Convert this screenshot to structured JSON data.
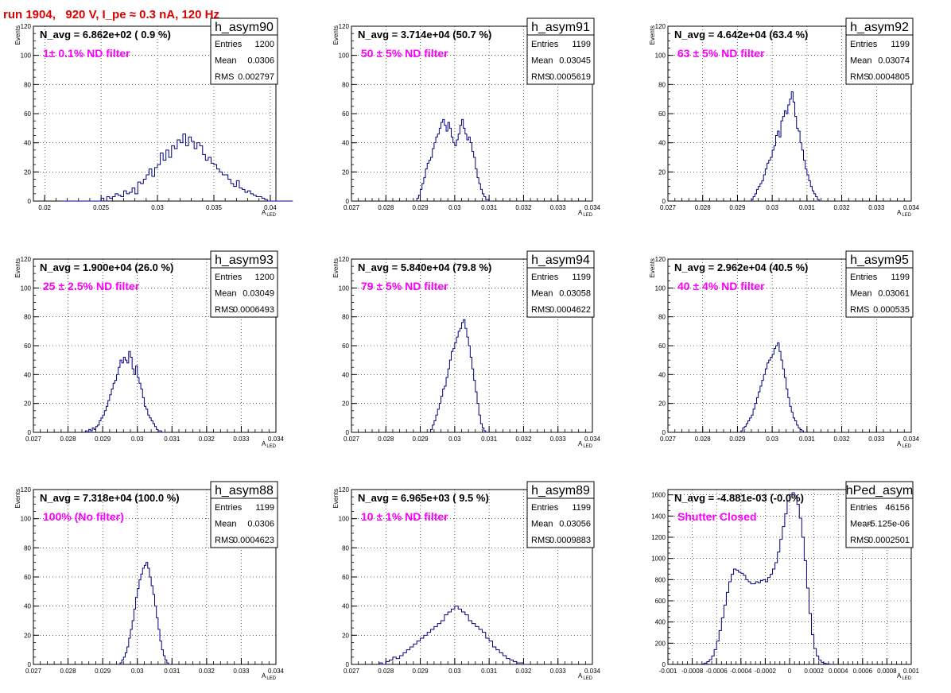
{
  "run_title": "run 1904,   920 V, I_pe ≈ 0.3 nA, 120 Hz",
  "style": {
    "hist_line": "#000080",
    "filter_text": "#ff00ff",
    "title_text": "#e00000",
    "grid": "#000000"
  },
  "chart_data": [
    {
      "type": "histogram",
      "name": "h_asym90",
      "stats": {
        "Entries": "1200",
        "Mean": "0.0306",
        "RMS": "0.002797"
      },
      "nlabel": "N_avg = 6.862e+02 ( 0.9 %)",
      "filter": "1± 0.1% ND filter",
      "xlabel": "A",
      "xlabel_sub": "LED",
      "ylabel": "Events",
      "xlim": [
        0.019,
        0.0405
      ],
      "ylim": [
        0,
        120
      ],
      "xticks": [
        "0.02",
        "0.025",
        "0.03",
        "0.035",
        "0.04"
      ],
      "xtick_values": [
        0.02,
        0.025,
        0.03,
        0.035,
        0.04
      ],
      "yticks": [
        0,
        20,
        40,
        60,
        80,
        100,
        120
      ],
      "bin_start": 0.0215,
      "bin_width": 0.00025,
      "values": [
        0,
        0,
        0,
        0,
        0,
        0,
        0,
        0,
        0,
        0,
        0,
        0,
        0,
        0,
        2,
        0,
        3,
        2,
        3,
        5,
        4,
        3,
        7,
        5,
        6,
        9,
        5,
        13,
        12,
        15,
        18,
        22,
        17,
        23,
        25,
        33,
        28,
        35,
        30,
        38,
        36,
        42,
        40,
        46,
        38,
        44,
        41,
        36,
        40,
        38,
        32,
        28,
        30,
        26,
        25,
        22,
        20,
        18,
        18,
        15,
        12,
        10,
        14,
        9,
        8,
        6,
        7,
        5,
        4,
        3,
        3,
        2,
        1,
        0,
        0,
        0,
        0,
        0,
        0,
        0,
        0,
        0
      ]
    },
    {
      "type": "histogram",
      "name": "h_asym91",
      "stats": {
        "Entries": "1199",
        "Mean": "0.03045",
        "RMS": "0.0005619"
      },
      "nlabel": "N_avg = 3.714e+04 (50.7 %)",
      "filter": "50 ± 5% ND filter",
      "xlabel": "A",
      "xlabel_sub": "LED",
      "ylabel": "Events",
      "xlim": [
        0.027,
        0.034
      ],
      "ylim": [
        0,
        120
      ],
      "xticks": [
        "0.027",
        "0.028",
        "0.029",
        "0.03",
        "0.031",
        "0.032",
        "0.033",
        "0.034"
      ],
      "xtick_values": [
        0.027,
        0.028,
        0.029,
        0.03,
        0.031,
        0.032,
        0.033,
        0.034
      ],
      "yticks": [
        0,
        20,
        40,
        60,
        80,
        100,
        120
      ],
      "bin_start": 0.0289,
      "bin_width": 5e-05,
      "values": [
        2,
        4,
        8,
        12,
        16,
        22,
        26,
        28,
        30,
        36,
        40,
        44,
        46,
        50,
        54,
        56,
        52,
        48,
        54,
        50,
        44,
        40,
        38,
        42,
        46,
        52,
        56,
        50,
        46,
        42,
        44,
        40,
        34,
        30,
        22,
        16,
        12,
        8,
        5,
        3,
        1,
        1,
        0
      ]
    },
    {
      "type": "histogram",
      "name": "h_asym92",
      "stats": {
        "Entries": "1199",
        "Mean": "0.03074",
        "RMS": "0.0004805"
      },
      "nlabel": "N_avg = 4.642e+04 (63.4 %)",
      "filter": "63 ± 5% ND filter",
      "xlabel": "A",
      "xlabel_sub": "LED",
      "ylabel": "Events",
      "xlim": [
        0.027,
        0.034
      ],
      "ylim": [
        0,
        120
      ],
      "xticks": [
        "0.027",
        "0.028",
        "0.029",
        "0.03",
        "0.031",
        "0.032",
        "0.033",
        "0.034"
      ],
      "xtick_values": [
        0.027,
        0.028,
        0.029,
        0.03,
        0.031,
        0.032,
        0.033,
        0.034
      ],
      "yticks": [
        0,
        20,
        40,
        60,
        80,
        100,
        120
      ],
      "bin_start": 0.0294,
      "bin_width": 5e-05,
      "values": [
        1,
        3,
        5,
        8,
        10,
        12,
        14,
        18,
        22,
        26,
        28,
        30,
        35,
        38,
        45,
        48,
        44,
        55,
        58,
        62,
        60,
        66,
        70,
        75,
        68,
        58,
        50,
        48,
        40,
        35,
        28,
        22,
        18,
        14,
        10,
        7,
        5,
        3,
        1,
        0
      ]
    },
    {
      "type": "histogram",
      "name": "h_asym93",
      "stats": {
        "Entries": "1200",
        "Mean": "0.03049",
        "RMS": "0.0006493"
      },
      "nlabel": "N_avg = 1.900e+04 (26.0 %)",
      "filter": "25 ± 2.5% ND filter",
      "xlabel": "A",
      "xlabel_sub": "LED",
      "ylabel": "Events",
      "xlim": [
        0.027,
        0.034
      ],
      "ylim": [
        0,
        120
      ],
      "xticks": [
        "0.027",
        "0.028",
        "0.029",
        "0.03",
        "0.031",
        "0.032",
        "0.033",
        "0.034"
      ],
      "xtick_values": [
        0.027,
        0.028,
        0.029,
        0.03,
        0.031,
        0.032,
        0.033,
        0.034
      ],
      "yticks": [
        0,
        20,
        40,
        60,
        80,
        100,
        120
      ],
      "bin_start": 0.0285,
      "bin_width": 5e-05,
      "values": [
        1,
        0,
        2,
        1,
        3,
        2,
        4,
        5,
        8,
        10,
        12,
        15,
        18,
        22,
        26,
        30,
        34,
        36,
        40,
        45,
        50,
        48,
        52,
        50,
        48,
        56,
        52,
        44,
        40,
        46,
        38,
        34,
        30,
        24,
        18,
        16,
        12,
        10,
        8,
        6,
        4,
        2,
        1,
        1,
        0,
        0
      ]
    },
    {
      "type": "histogram",
      "name": "h_asym94",
      "stats": {
        "Entries": "1199",
        "Mean": "0.03058",
        "RMS": "0.0004622"
      },
      "nlabel": "N_avg = 5.840e+04 (79.8 %)",
      "filter": "79 ± 5% ND filter",
      "xlabel": "A",
      "xlabel_sub": "LED",
      "ylabel": "Events",
      "xlim": [
        0.027,
        0.034
      ],
      "ylim": [
        0,
        120
      ],
      "xticks": [
        "0.027",
        "0.028",
        "0.029",
        "0.03",
        "0.031",
        "0.032",
        "0.033",
        "0.034"
      ],
      "xtick_values": [
        0.027,
        0.028,
        0.029,
        0.03,
        0.031,
        0.032,
        0.033,
        0.034
      ],
      "yticks": [
        0,
        20,
        40,
        60,
        80,
        100,
        120
      ],
      "bin_start": 0.0293,
      "bin_width": 5e-05,
      "values": [
        2,
        5,
        8,
        12,
        16,
        20,
        25,
        30,
        32,
        38,
        44,
        50,
        56,
        58,
        62,
        66,
        70,
        72,
        76,
        78,
        72,
        66,
        60,
        52,
        44,
        36,
        28,
        20,
        12,
        6,
        3,
        1,
        0
      ]
    },
    {
      "type": "histogram",
      "name": "h_asym95",
      "stats": {
        "Entries": "1199",
        "Mean": "0.03061",
        "RMS": "0.000535"
      },
      "nlabel": "N_avg = 2.962e+04 (40.5 %)",
      "filter": "40 ± 4% ND filter",
      "xlabel": "A",
      "xlabel_sub": "LED",
      "ylabel": "Events",
      "xlim": [
        0.027,
        0.034
      ],
      "ylim": [
        0,
        120
      ],
      "xticks": [
        "0.027",
        "0.028",
        "0.029",
        "0.03",
        "0.031",
        "0.032",
        "0.033",
        "0.034"
      ],
      "xtick_values": [
        0.027,
        0.028,
        0.029,
        0.03,
        0.031,
        0.032,
        0.033,
        0.034
      ],
      "yticks": [
        0,
        20,
        40,
        60,
        80,
        100,
        120
      ],
      "bin_start": 0.0291,
      "bin_width": 5e-05,
      "values": [
        1,
        3,
        4,
        6,
        8,
        10,
        12,
        16,
        20,
        24,
        28,
        32,
        36,
        40,
        44,
        48,
        50,
        52,
        54,
        58,
        60,
        62,
        56,
        50,
        44,
        38,
        30,
        24,
        18,
        14,
        10,
        8,
        5,
        3,
        2,
        1,
        0
      ]
    },
    {
      "type": "histogram",
      "name": "h_asym88",
      "stats": {
        "Entries": "1199",
        "Mean": "0.0306",
        "RMS": "0.0004623"
      },
      "nlabel": "N_avg = 7.318e+04 (100.0 %)",
      "filter": "100% (No filter)",
      "xlabel": "A",
      "xlabel_sub": "LED",
      "ylabel": "Events",
      "xlim": [
        0.027,
        0.034
      ],
      "ylim": [
        0,
        120
      ],
      "xticks": [
        "0.027",
        "0.028",
        "0.029",
        "0.03",
        "0.031",
        "0.032",
        "0.033",
        "0.034"
      ],
      "xtick_values": [
        0.027,
        0.028,
        0.029,
        0.03,
        0.031,
        0.032,
        0.033,
        0.034
      ],
      "yticks": [
        0,
        20,
        40,
        60,
        80,
        100,
        120
      ],
      "bin_start": 0.0295,
      "bin_width": 5e-05,
      "values": [
        1,
        3,
        5,
        8,
        12,
        18,
        24,
        30,
        38,
        46,
        52,
        58,
        62,
        66,
        68,
        70,
        66,
        60,
        54,
        48,
        40,
        32,
        24,
        16,
        10,
        6,
        3,
        1,
        0
      ]
    },
    {
      "type": "histogram",
      "name": "h_asym89",
      "stats": {
        "Entries": "1199",
        "Mean": "0.03056",
        "RMS": "0.0009883"
      },
      "nlabel": "N_avg = 6.965e+03 ( 9.5 %)",
      "filter": "10 ± 1% ND filter",
      "xlabel": "A",
      "xlabel_sub": "LED",
      "ylabel": "Events",
      "xlim": [
        0.027,
        0.034
      ],
      "ylim": [
        0,
        120
      ],
      "xticks": [
        "0.027",
        "0.028",
        "0.029",
        "0.03",
        "0.031",
        "0.032",
        "0.033",
        "0.034"
      ],
      "xtick_values": [
        0.027,
        0.028,
        0.029,
        0.03,
        0.031,
        0.032,
        0.033,
        0.034
      ],
      "yticks": [
        0,
        20,
        40,
        60,
        80,
        100,
        120
      ],
      "bin_start": 0.0278,
      "bin_width": 0.0001,
      "values": [
        1,
        0,
        2,
        3,
        5,
        4,
        6,
        8,
        10,
        12,
        14,
        16,
        18,
        20,
        22,
        24,
        26,
        28,
        30,
        34,
        36,
        38,
        40,
        38,
        36,
        34,
        30,
        28,
        26,
        24,
        22,
        18,
        16,
        12,
        10,
        8,
        6,
        4,
        3,
        2,
        1,
        1,
        0
      ]
    },
    {
      "type": "histogram",
      "name": "hPed_asym",
      "stats": {
        "Entries": "46156",
        "Mean": "-5.125e-06",
        "RMS": "0.0002501"
      },
      "nlabel": "N_avg = -4.881e-03 (-0.0%)",
      "filter": "Shutter Closed",
      "xlabel": "A",
      "xlabel_sub": "LED",
      "ylabel": "",
      "xlim": [
        -0.001,
        0.001
      ],
      "ylim": [
        0,
        1650
      ],
      "xticks": [
        "-0.001",
        "-0.0008",
        "-0.0006",
        "-0.0004",
        "-0.0002",
        "0",
        "0.0002",
        "0.0004",
        "0.0006",
        "0.0008",
        "0.001"
      ],
      "xtick_values": [
        -0.001,
        -0.0008,
        -0.0006,
        -0.0004,
        -0.0002,
        0,
        0.0002,
        0.0004,
        0.0006,
        0.0008,
        0.001
      ],
      "yticks": [
        0,
        200,
        400,
        600,
        800,
        1000,
        1200,
        1400,
        1600
      ],
      "bin_start": -0.00072,
      "bin_width": 2e-05,
      "values": [
        5,
        12,
        25,
        45,
        80,
        140,
        220,
        320,
        440,
        560,
        680,
        780,
        850,
        900,
        890,
        870,
        860,
        840,
        800,
        780,
        760,
        760,
        780,
        770,
        790,
        800,
        780,
        820,
        850,
        900,
        960,
        1060,
        1180,
        1300,
        1420,
        1540,
        1600,
        1620,
        1590,
        1510,
        1380,
        1200,
        980,
        720,
        480,
        280,
        150,
        80,
        40,
        20,
        10,
        5,
        2,
        0
      ]
    }
  ]
}
